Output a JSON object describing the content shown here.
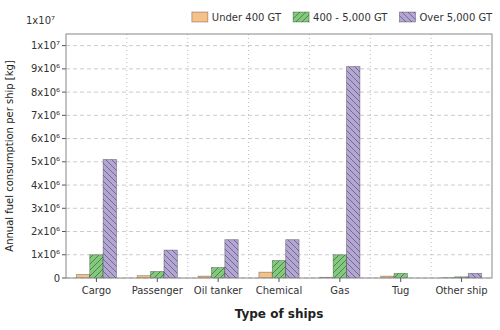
{
  "chart_data": {
    "type": "bar",
    "xlabel": "Type of ships",
    "ylabel": "Annual fuel consumption per ship [kg]",
    "annotations": [
      "1x10⁷"
    ],
    "categories": [
      "Cargo",
      "Passenger",
      "Oil tanker",
      "Chemical",
      "Gas",
      "Tug",
      "Other ship"
    ],
    "series": [
      {
        "name": "Under 400 GT",
        "color": "#f5c08a",
        "values": [
          150000,
          100000,
          80000,
          250000,
          30000,
          80000,
          15000
        ]
      },
      {
        "name": "400 - 5,000 GT",
        "color": "#82c97e",
        "values": [
          1000000,
          280000,
          450000,
          750000,
          1000000,
          200000,
          50000
        ]
      },
      {
        "name": "Over 5,000 GT",
        "color": "#b3a5d4",
        "values": [
          5100000,
          1200000,
          1650000,
          1650000,
          9100000,
          0,
          200000
        ]
      }
    ],
    "ylim": [
      0,
      10500000
    ],
    "yticks": [
      0,
      {
        "value": 1000000,
        "label": "1x10⁶"
      },
      {
        "value": 2000000,
        "label": "2x10⁶"
      },
      {
        "value": 3000000,
        "label": "3x10⁶"
      },
      {
        "value": 4000000,
        "label": "4x10⁶"
      },
      {
        "value": 5000000,
        "label": "5x10⁶"
      },
      {
        "value": 6000000,
        "label": "6x10⁶"
      },
      {
        "value": 7000000,
        "label": "7x10⁶"
      },
      {
        "value": 8000000,
        "label": "8x10⁶"
      },
      {
        "value": 9000000,
        "label": "9x10⁶"
      },
      {
        "value": 10000000,
        "label": "1x10⁷"
      }
    ],
    "grid": true,
    "legend": "upper right"
  }
}
